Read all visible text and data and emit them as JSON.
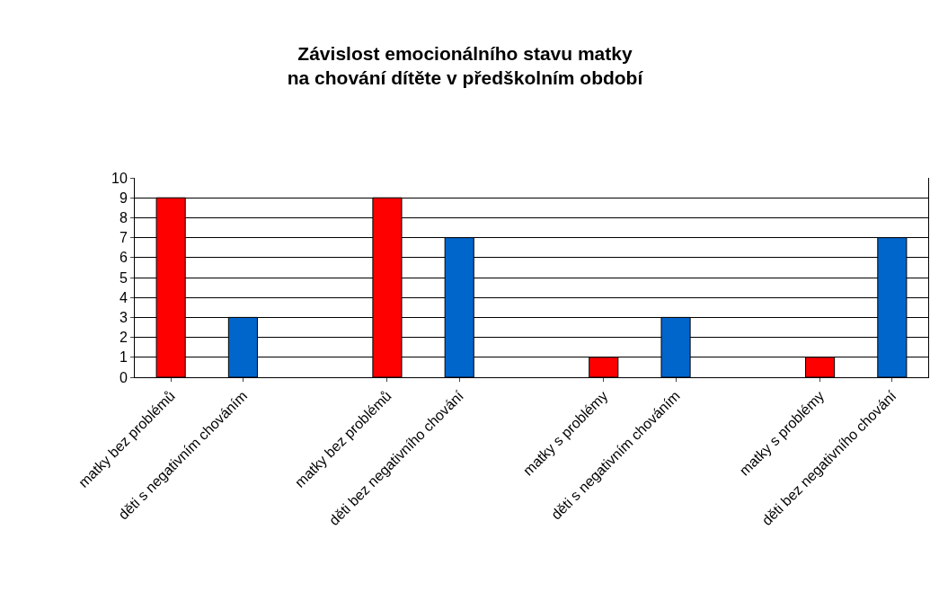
{
  "chart_data": {
    "type": "bar",
    "title": "Závislost emocionálního stavu matky\nna chování dítěte v předškolním období",
    "categories": [
      "matky bez problémů",
      "děti s negativním chováním",
      null,
      "matky bez problémů",
      "děti bez negativního chování",
      null,
      "matky s problémy",
      "děti s negativním chováním",
      null,
      "matky s problémy",
      "děti bez negativního chování"
    ],
    "values": [
      9,
      3,
      null,
      9,
      7,
      null,
      1,
      3,
      null,
      1,
      7
    ],
    "colors": [
      "#ff0000",
      "#0066cc",
      null,
      "#ff0000",
      "#0066cc",
      null,
      "#ff0000",
      "#0066cc",
      null,
      "#ff0000",
      "#0066cc"
    ],
    "ylim": [
      0,
      10
    ],
    "yticks": [
      0,
      1,
      2,
      3,
      4,
      5,
      6,
      7,
      8,
      9,
      10
    ],
    "grid": "y"
  }
}
